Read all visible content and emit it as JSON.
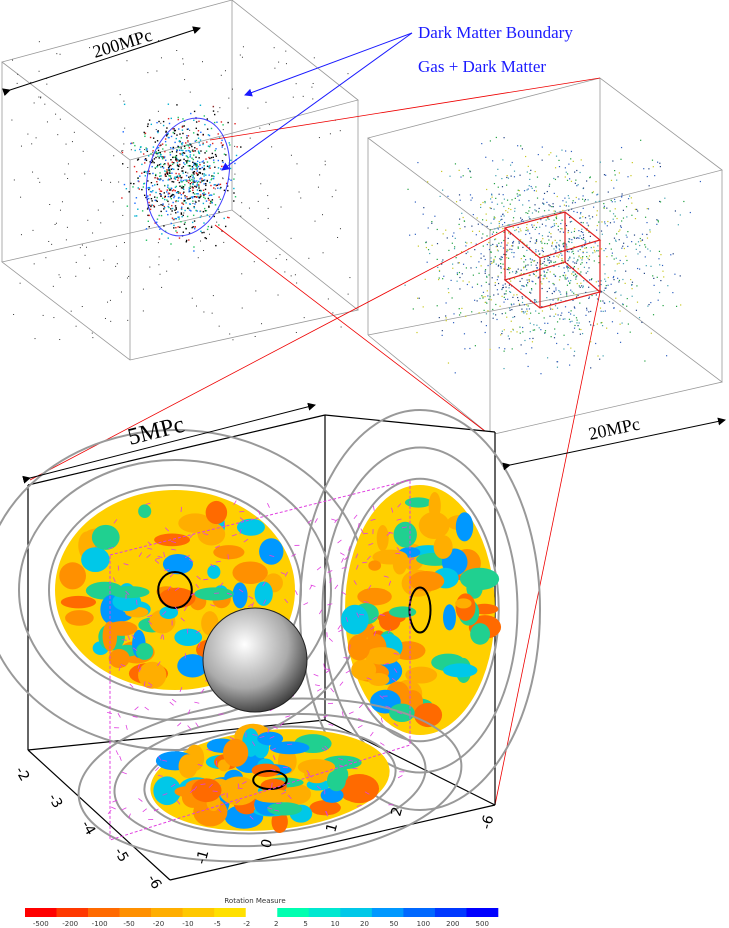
{
  "annotations": {
    "dark_matter_boundary": "Dark Matter Boundary",
    "gas_dark_matter": "Gas + Dark Matter"
  },
  "scales": {
    "large": "200MPc",
    "medium": "20MPc",
    "small": "5MPc"
  },
  "axes": {
    "left": [
      "-2",
      "-3",
      "-4",
      "-5",
      "-6"
    ],
    "bottom": [
      "-1",
      "0",
      "1",
      "2"
    ],
    "corner": "-6"
  },
  "colorbar": {
    "title": "Rotation Measure",
    "labels": [
      "-500",
      "-200",
      "-100",
      "-50",
      "-20",
      "-10",
      "-5",
      "-2",
      "2",
      "5",
      "10",
      "20",
      "50",
      "100",
      "200",
      "500"
    ],
    "colors": [
      "#ff0000",
      "#ff3800",
      "#ff6a00",
      "#ff9000",
      "#ffae00",
      "#ffc800",
      "#ffe000",
      "#ffffff",
      "#00ffb0",
      "#00e8d0",
      "#00c8e8",
      "#0098ff",
      "#0068ff",
      "#0038ff",
      "#0000ff"
    ]
  }
}
